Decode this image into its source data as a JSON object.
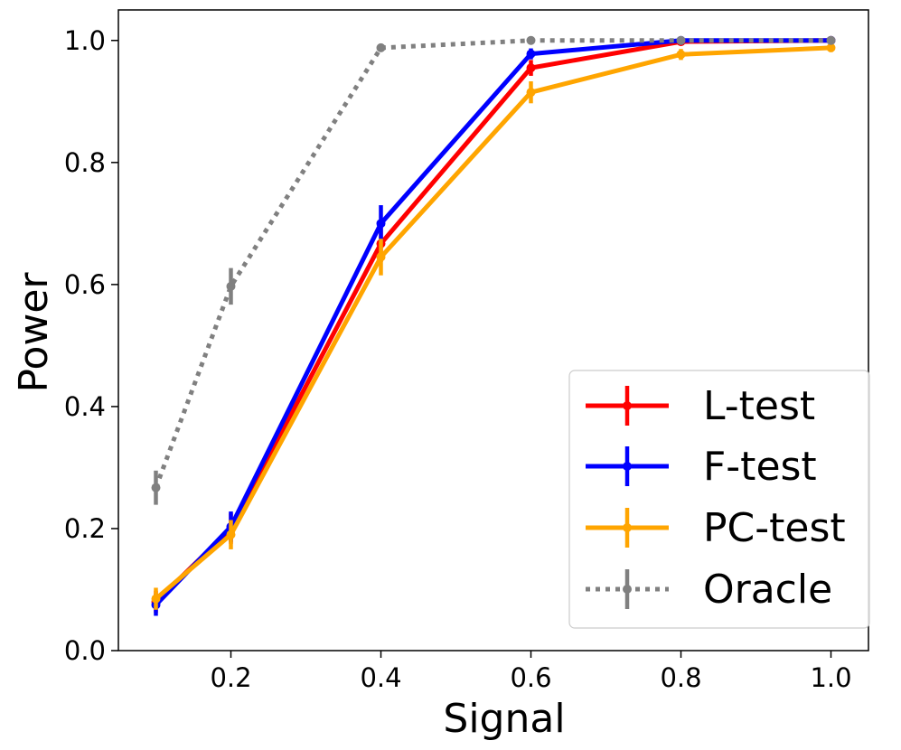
{
  "chart_data": {
    "type": "line",
    "xlabel": "Signal",
    "ylabel": "Power",
    "xlim": [
      0.05,
      1.05
    ],
    "ylim": [
      0.0,
      1.05
    ],
    "xticks": [
      "0.2",
      "0.4",
      "0.6",
      "0.8",
      "1.0"
    ],
    "xtick_values": [
      0.2,
      0.4,
      0.6,
      0.8,
      1.0
    ],
    "yticks": [
      "0.0",
      "0.2",
      "0.4",
      "0.6",
      "0.8",
      "1.0"
    ],
    "ytick_values": [
      0.0,
      0.2,
      0.4,
      0.6,
      0.8,
      1.0
    ],
    "grid": false,
    "legend_position": "bottom-right",
    "x": [
      0.1,
      0.2,
      0.4,
      0.6,
      0.8,
      1.0
    ],
    "series": [
      {
        "name": "L-test",
        "color": "#ff0000",
        "style": "solid",
        "values": [
          0.08,
          0.2,
          0.667,
          0.955,
          0.998,
          1.0
        ],
        "errors": [
          0.018,
          0.025,
          0.03,
          0.013,
          0.004,
          0.002
        ]
      },
      {
        "name": "F-test",
        "color": "#0000ff",
        "style": "solid",
        "values": [
          0.075,
          0.203,
          0.7,
          0.978,
          1.0,
          1.0
        ],
        "errors": [
          0.018,
          0.025,
          0.03,
          0.009,
          0.002,
          0.002
        ]
      },
      {
        "name": "PC-test",
        "color": "#ffa500",
        "style": "solid",
        "values": [
          0.085,
          0.19,
          0.645,
          0.915,
          0.977,
          0.988
        ],
        "errors": [
          0.018,
          0.024,
          0.03,
          0.018,
          0.009,
          0.007
        ]
      },
      {
        "name": "Oracle",
        "color": "#808080",
        "style": "dotted",
        "values": [
          0.267,
          0.597,
          0.988,
          1.0,
          1.0,
          1.0
        ],
        "errors": [
          0.028,
          0.03,
          0.006,
          0.002,
          0.002,
          0.002
        ]
      }
    ]
  }
}
